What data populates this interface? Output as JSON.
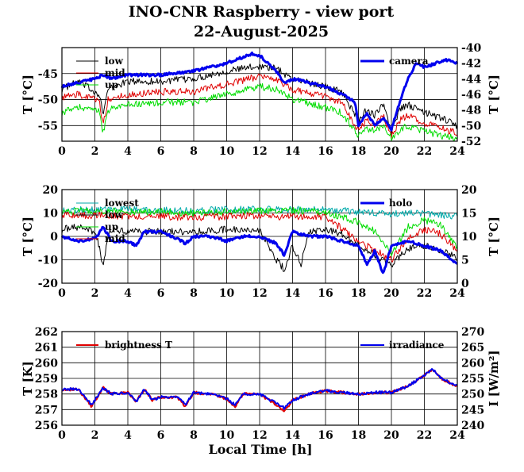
{
  "title": "INO-CNR Raspberry - view port",
  "subtitle": "22-August-2025",
  "x_axis_label": "Local Time [h]",
  "chart_data": [
    {
      "type": "line",
      "xlim": [
        0,
        24
      ],
      "x_ticks": [
        "0",
        "2",
        "4",
        "6",
        "8",
        "10",
        "12",
        "14",
        "16",
        "18",
        "20",
        "22",
        "24"
      ],
      "ylabel": "T [°C]",
      "ylim": [
        -58,
        -40
      ],
      "y_ticks": [
        "-45",
        "-50",
        "-55"
      ],
      "y_tick_values": [
        -45,
        -50,
        -55
      ],
      "ylabel_right": "T [°C]",
      "ylim_right": [
        -52,
        -40
      ],
      "y_ticks_right": [
        "-40",
        "-42",
        "-44",
        "-46",
        "-48",
        "-50",
        "-52"
      ],
      "y_tick_values_right": [
        -40,
        -42,
        -44,
        -46,
        -48,
        -50,
        -52
      ],
      "grid": true,
      "legend_left": "top-left",
      "legend_right": "top-right",
      "series": [
        {
          "name": "low",
          "axis": "left",
          "color": "#000000",
          "width": 1,
          "x": [
            0,
            1,
            2,
            2.3,
            2.5,
            2.8,
            4,
            6,
            8,
            10,
            12,
            13,
            14,
            16,
            17,
            18,
            18.5,
            19,
            19.5,
            20,
            20.5,
            21,
            22,
            23,
            24
          ],
          "y": [
            -48,
            -46.5,
            -48.5,
            -49,
            -53,
            -48,
            -46.5,
            -46.5,
            -46,
            -44.5,
            -43.5,
            -44,
            -46,
            -47.5,
            -48.5,
            -54,
            -52,
            -53,
            -51,
            -56,
            -52,
            -51,
            -52.5,
            -53.5,
            -55
          ]
        },
        {
          "name": "mid",
          "axis": "left",
          "color": "#e00000",
          "width": 1,
          "x": [
            0,
            1,
            2,
            2.3,
            2.5,
            2.8,
            4,
            6,
            8,
            10,
            12,
            13,
            14,
            16,
            17,
            18,
            18.5,
            19,
            19.5,
            20,
            20.5,
            21,
            22,
            23,
            24
          ],
          "y": [
            -49.5,
            -49,
            -50,
            -50.5,
            -55,
            -50,
            -49,
            -48.5,
            -48.5,
            -47,
            -45.5,
            -46,
            -48,
            -49.5,
            -50.5,
            -56,
            -54,
            -55,
            -53,
            -57,
            -54,
            -53,
            -54.5,
            -55.5,
            -56.5
          ]
        },
        {
          "name": "up",
          "axis": "left",
          "color": "#00dd00",
          "width": 1,
          "x": [
            0,
            1,
            2,
            2.3,
            2.5,
            2.8,
            4,
            6,
            8,
            10,
            12,
            13,
            14,
            16,
            17,
            18,
            18.5,
            19,
            19.5,
            20,
            20.5,
            21,
            22,
            23,
            24
          ],
          "y": [
            -52.5,
            -51.5,
            -52,
            -52.5,
            -56.5,
            -52,
            -51,
            -50.5,
            -50.5,
            -49,
            -47.5,
            -48,
            -50,
            -51.5,
            -52.5,
            -57,
            -55.5,
            -56,
            -55,
            -57.5,
            -56,
            -55,
            -56,
            -57,
            -57.5
          ]
        },
        {
          "name": "camera",
          "axis": "right",
          "color": "#0000ee",
          "width": 3,
          "x": [
            0,
            1,
            2,
            2.5,
            3,
            4,
            6,
            8,
            10,
            11,
            11.5,
            12,
            12.5,
            13,
            13.5,
            14,
            15,
            16,
            17,
            17.8,
            18,
            18.5,
            19,
            19.5,
            20,
            20.5,
            21,
            21.5,
            22,
            23,
            23.5,
            24
          ],
          "y": [
            -45,
            -44.5,
            -44,
            -43.5,
            -44,
            -43.5,
            -43.5,
            -43,
            -42,
            -41.2,
            -40.8,
            -41,
            -42,
            -43,
            -44.5,
            -44,
            -44.5,
            -45,
            -46,
            -47,
            -50,
            -48.5,
            -50,
            -49,
            -50.5,
            -47,
            -44,
            -42,
            -42.5,
            -41.8,
            -41.5,
            -42
          ]
        }
      ]
    },
    {
      "type": "line",
      "xlim": [
        0,
        24
      ],
      "x_ticks": [
        "0",
        "2",
        "4",
        "6",
        "8",
        "10",
        "12",
        "14",
        "16",
        "18",
        "20",
        "22",
        "24"
      ],
      "ylabel": "T [°C]",
      "ylim": [
        -20,
        20
      ],
      "y_ticks": [
        "20",
        "10",
        "0",
        "-10",
        "-20"
      ],
      "y_tick_values": [
        20,
        10,
        0,
        -10,
        -20
      ],
      "ylabel_right": "T [°C]",
      "ylim_right": [
        0,
        20
      ],
      "y_ticks_right": [
        "20",
        "15",
        "10",
        "5",
        "0"
      ],
      "y_tick_values_right": [
        20,
        15,
        10,
        5,
        0
      ],
      "grid": true,
      "legend_left": "top-left",
      "legend_right": "top-right",
      "series": [
        {
          "name": "lowest",
          "axis": "left",
          "color": "#00aaaa",
          "width": 1,
          "x": [
            0,
            2,
            4,
            6,
            8,
            10,
            12,
            14,
            16,
            18,
            19,
            20,
            21,
            22,
            24
          ],
          "y": [
            11,
            11.5,
            11.5,
            11.5,
            11,
            11.5,
            11.5,
            11.5,
            11.5,
            10.5,
            10,
            9.5,
            10,
            9.5,
            8.5
          ]
        },
        {
          "name": "low",
          "axis": "left",
          "color": "#000000",
          "width": 1,
          "x": [
            0,
            1,
            2,
            2.3,
            2.5,
            2.8,
            3,
            4,
            6,
            8,
            10,
            12,
            13,
            13.5,
            14,
            14.5,
            15,
            16,
            17,
            18,
            19,
            20,
            21,
            22,
            23,
            24
          ],
          "y": [
            3,
            4,
            2,
            -5,
            -14,
            0,
            3,
            2,
            2,
            2,
            3,
            3,
            -10,
            -14,
            -4,
            -12,
            2,
            3,
            1,
            -4,
            -8,
            -12,
            -5,
            -4,
            -6,
            -9
          ]
        },
        {
          "name": "up",
          "axis": "left",
          "color": "#00dd00",
          "width": 1,
          "x": [
            0,
            2,
            4,
            6,
            8,
            10,
            12,
            13,
            14,
            16,
            18,
            19,
            20,
            21,
            22,
            23,
            24
          ],
          "y": [
            10.5,
            11,
            10.5,
            10.5,
            10,
            10.5,
            11,
            10.5,
            11,
            10.5,
            6,
            2,
            -8,
            4,
            7,
            5,
            -5
          ]
        },
        {
          "name": "mid",
          "axis": "left",
          "color": "#e00000",
          "width": 1,
          "x": [
            0,
            2,
            4,
            6,
            8,
            10,
            12,
            13,
            14,
            16,
            18,
            19,
            20,
            21,
            22,
            23,
            24
          ],
          "y": [
            9,
            9,
            8.5,
            8.5,
            8,
            8.5,
            9,
            8,
            8.5,
            8.5,
            -2,
            -6,
            -10,
            -1,
            3,
            1,
            -6
          ]
        },
        {
          "name": "holo",
          "axis": "right",
          "color": "#0000ee",
          "width": 3,
          "x": [
            0,
            1,
            2,
            2.5,
            3,
            4,
            4.5,
            5,
            6,
            7,
            7.5,
            8,
            9,
            10,
            11,
            12,
            13,
            13.5,
            14,
            15,
            16,
            17,
            18,
            18.5,
            19,
            19.5,
            20,
            21,
            22,
            23,
            24
          ],
          "y": [
            10,
            9,
            9.5,
            12,
            9,
            9,
            8,
            11,
            11,
            9.5,
            8.5,
            10,
            10,
            9,
            10,
            10,
            8.5,
            6,
            11,
            10,
            10,
            9,
            8,
            4,
            7,
            2,
            8,
            9,
            8,
            7,
            4
          ]
        }
      ]
    },
    {
      "type": "line",
      "xlim": [
        0,
        24
      ],
      "x_ticks": [
        "0",
        "2",
        "4",
        "6",
        "8",
        "10",
        "12",
        "14",
        "16",
        "18",
        "20",
        "22",
        "24"
      ],
      "ylabel": "T [K]",
      "ylim": [
        256,
        262
      ],
      "y_ticks": [
        "262",
        "261",
        "260",
        "259",
        "258",
        "257",
        "256"
      ],
      "y_tick_values": [
        262,
        261,
        260,
        259,
        258,
        257,
        256
      ],
      "ylabel_right": "I [W/m²]",
      "ylim_right": [
        240,
        270
      ],
      "y_ticks_right": [
        "270",
        "265",
        "260",
        "255",
        "250",
        "245",
        "240"
      ],
      "y_tick_values_right": [
        270,
        265,
        260,
        255,
        250,
        245,
        240
      ],
      "grid": true,
      "legend_left": "top-left",
      "legend_right": "top-right",
      "series": [
        {
          "name": "brightness T",
          "axis": "left",
          "color": "#e00000",
          "width": 2,
          "x": [
            0,
            1,
            1.8,
            2.5,
            3,
            4,
            4.5,
            5,
            5.5,
            6,
            7,
            7.5,
            8,
            9,
            10,
            10.5,
            11,
            12,
            13,
            13.5,
            14,
            15,
            16,
            17,
            18,
            19,
            20,
            21,
            22,
            22.5,
            23,
            24
          ],
          "y": [
            258.3,
            258.3,
            257.2,
            258.4,
            258,
            258.1,
            257.5,
            258.3,
            257.6,
            257.8,
            257.8,
            257.2,
            258.1,
            258,
            257.7,
            257.2,
            258,
            258,
            257.3,
            256.9,
            257.6,
            258,
            258.2,
            258.1,
            258,
            258.1,
            258.1,
            258.5,
            259.2,
            259.6,
            259,
            258.5
          ]
        },
        {
          "name": "irradiance",
          "axis": "right",
          "color": "#0000ee",
          "width": 2,
          "x": [
            0,
            1,
            1.8,
            2.5,
            3,
            4,
            4.5,
            5,
            5.5,
            6,
            7,
            7.5,
            8,
            9,
            10,
            10.5,
            11,
            12,
            13,
            13.5,
            14,
            15,
            16,
            17,
            18,
            19,
            20,
            21,
            22,
            22.5,
            23,
            24
          ],
          "y": [
            251.5,
            251.5,
            246.5,
            252,
            250,
            250.5,
            247.5,
            251.5,
            248,
            249,
            249,
            246.5,
            250.5,
            250,
            248.5,
            246.5,
            250,
            250,
            247,
            245.5,
            248,
            250,
            251,
            250.5,
            250,
            250.5,
            250.5,
            252.5,
            256,
            258,
            255,
            252.5
          ]
        }
      ]
    }
  ]
}
